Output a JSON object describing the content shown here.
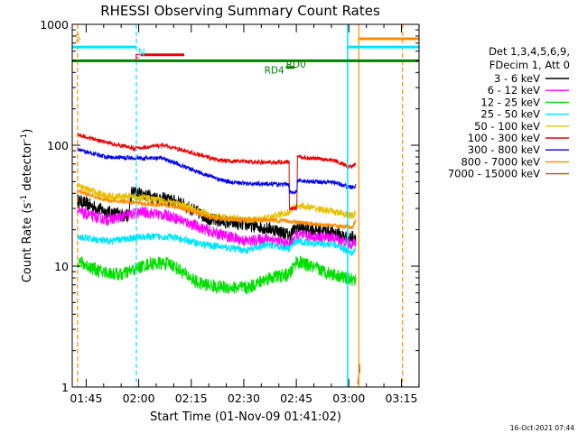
{
  "chart_data": {
    "type": "line",
    "title": "RHESSI Observing Summary Count Rates",
    "xlabel": "Start Time (01-Nov-09 01:41:02)",
    "ylabel_main": "Count Rate (s",
    "ylabel_sup1": "-1",
    "ylabel_mid": " detector",
    "ylabel_sup2": "-1",
    "ylabel_end": ")",
    "x_units": "minutes after 01:41:02",
    "xlim": [
      0,
      99
    ],
    "ylim": [
      1,
      1000
    ],
    "yscale": "log",
    "x_ticks": [
      {
        "label": "01:45",
        "x": 3.97
      },
      {
        "label": "02:00",
        "x": 18.97
      },
      {
        "label": "02:15",
        "x": 33.97
      },
      {
        "label": "02:30",
        "x": 48.97
      },
      {
        "label": "02:45",
        "x": 63.97
      },
      {
        "label": "03:00",
        "x": 78.97
      },
      {
        "label": "03:15",
        "x": 93.97
      }
    ],
    "y_ticks": [
      {
        "label": "1",
        "y": 1
      },
      {
        "label": "10",
        "y": 10
      },
      {
        "label": "100",
        "y": 100
      },
      {
        "label": "1000",
        "y": 1000
      }
    ],
    "legend": {
      "placement": "right",
      "header": [
        "Det 1,3,4,5,6,9,",
        "FDecim 1, Att 0"
      ],
      "entries": [
        {
          "label": "3 - 6 keV",
          "color": "#000000"
        },
        {
          "label": "6 - 12 keV",
          "color": "#ff00ff"
        },
        {
          "label": "12 - 25 keV",
          "color": "#00e000"
        },
        {
          "label": "25 - 50 keV",
          "color": "#00e5ff"
        },
        {
          "label": "50 - 100 keV",
          "color": "#e8c000"
        },
        {
          "label": "100 - 300 keV",
          "color": "#ee0000"
        },
        {
          "label": "300 - 800 keV",
          "color": "#0000ee"
        },
        {
          "label": "800 - 7000 keV",
          "color": "#ff8c00"
        },
        {
          "label": "7000 - 15000 keV",
          "color": "#996600"
        }
      ]
    },
    "series": [
      {
        "name": "3 - 6 keV",
        "color": "#000000",
        "noise": 0.13,
        "points": [
          [
            1.5,
            35
          ],
          [
            10,
            28
          ],
          [
            16,
            26
          ],
          [
            17,
            41
          ],
          [
            22,
            38
          ],
          [
            30,
            34
          ],
          [
            40,
            24
          ],
          [
            50,
            22
          ],
          [
            58,
            20
          ],
          [
            62,
            18
          ],
          [
            64,
            21
          ],
          [
            75,
            19
          ],
          [
            79,
            17
          ],
          [
            81,
            18
          ]
        ]
      },
      {
        "name": "6 - 12 keV",
        "color": "#ff00ff",
        "noise": 0.11,
        "points": [
          [
            1.5,
            28
          ],
          [
            10,
            24
          ],
          [
            20,
            28
          ],
          [
            28,
            26
          ],
          [
            40,
            19
          ],
          [
            50,
            16
          ],
          [
            56,
            17
          ],
          [
            62,
            15
          ],
          [
            64,
            18
          ],
          [
            75,
            17
          ],
          [
            80,
            15
          ],
          [
            81,
            16
          ]
        ]
      },
      {
        "name": "12 - 25 keV",
        "color": "#00e000",
        "noise": 0.13,
        "points": [
          [
            1.5,
            11
          ],
          [
            8,
            9
          ],
          [
            14,
            8.5
          ],
          [
            22,
            10.5
          ],
          [
            28,
            10.5
          ],
          [
            36,
            7.2
          ],
          [
            42,
            6.7
          ],
          [
            50,
            6.6
          ],
          [
            56,
            8
          ],
          [
            62,
            8.5
          ],
          [
            64,
            11
          ],
          [
            72,
            9
          ],
          [
            78,
            8
          ],
          [
            81,
            7.5
          ]
        ]
      },
      {
        "name": "25 - 50 keV",
        "color": "#00e5ff",
        "noise": 0.07,
        "points": [
          [
            1.5,
            17.5
          ],
          [
            10,
            16
          ],
          [
            20,
            17.5
          ],
          [
            28,
            17.5
          ],
          [
            38,
            15
          ],
          [
            50,
            13.5
          ],
          [
            56,
            15
          ],
          [
            62,
            14
          ],
          [
            64,
            16
          ],
          [
            75,
            15
          ],
          [
            80,
            13
          ],
          [
            81,
            14
          ]
        ]
      },
      {
        "name": "50 - 100 keV",
        "color": "#e8c000",
        "noise": 0.07,
        "points": [
          [
            1.5,
            46
          ],
          [
            10,
            38
          ],
          [
            20,
            37
          ],
          [
            30,
            33
          ],
          [
            40,
            26
          ],
          [
            50,
            24
          ],
          [
            56,
            25
          ],
          [
            62,
            28
          ],
          [
            64,
            32
          ],
          [
            75,
            28
          ],
          [
            80,
            26
          ],
          [
            81,
            28
          ]
        ]
      },
      {
        "name": "100 - 300 keV",
        "color": "#ee0000",
        "noise": 0.04,
        "points": [
          [
            1.5,
            122
          ],
          [
            10,
            105
          ],
          [
            18,
            94
          ],
          [
            26,
            100
          ],
          [
            34,
            87
          ],
          [
            42,
            75
          ],
          [
            50,
            73
          ],
          [
            56,
            72
          ],
          [
            61.9,
            73
          ],
          [
            62,
            30
          ],
          [
            64.1,
            30
          ],
          [
            64.3,
            80
          ],
          [
            75,
            75
          ],
          [
            79,
            66
          ],
          [
            81,
            69
          ]
        ]
      },
      {
        "name": "300 - 800 keV",
        "color": "#0000ee",
        "noise": 0.04,
        "points": [
          [
            1.5,
            92
          ],
          [
            10,
            80
          ],
          [
            20,
            78
          ],
          [
            26,
            78
          ],
          [
            36,
            60
          ],
          [
            44,
            50
          ],
          [
            50,
            48
          ],
          [
            56,
            48
          ],
          [
            61.9,
            47
          ],
          [
            62,
            41
          ],
          [
            64.1,
            41
          ],
          [
            64.3,
            51
          ],
          [
            75,
            49
          ],
          [
            79,
            45
          ],
          [
            81,
            46
          ]
        ]
      },
      {
        "name": "800 - 7000 keV",
        "color": "#ff8c00",
        "noise": 0.04,
        "points": [
          [
            1.5,
            42
          ],
          [
            10,
            35
          ],
          [
            20,
            33
          ],
          [
            30,
            31
          ],
          [
            40,
            25
          ],
          [
            50,
            24
          ],
          [
            56,
            24
          ],
          [
            62,
            23.5
          ],
          [
            64,
            23
          ],
          [
            75,
            21.5
          ],
          [
            80,
            21
          ],
          [
            81,
            24
          ]
        ]
      },
      {
        "name": "7000 - 15000 keV",
        "color": "#996600",
        "noise": 0.0,
        "points": [
          [
            81.5,
            1.05
          ],
          [
            81.8,
            1.3
          ],
          [
            82,
            1.6
          ],
          [
            82.2,
            1.2
          ]
        ]
      }
    ],
    "flags": [
      {
        "label": "S",
        "color": "#ff8c00"
      },
      {
        "label": "N",
        "color": "#00e5ff"
      },
      {
        "label": "F",
        "color": "#ee0000"
      },
      {
        "label": "RD0",
        "color": "#008000"
      },
      {
        "label": "RD4",
        "color": "#008000"
      }
    ],
    "timestamp": "16-Oct-2021 07:44"
  }
}
